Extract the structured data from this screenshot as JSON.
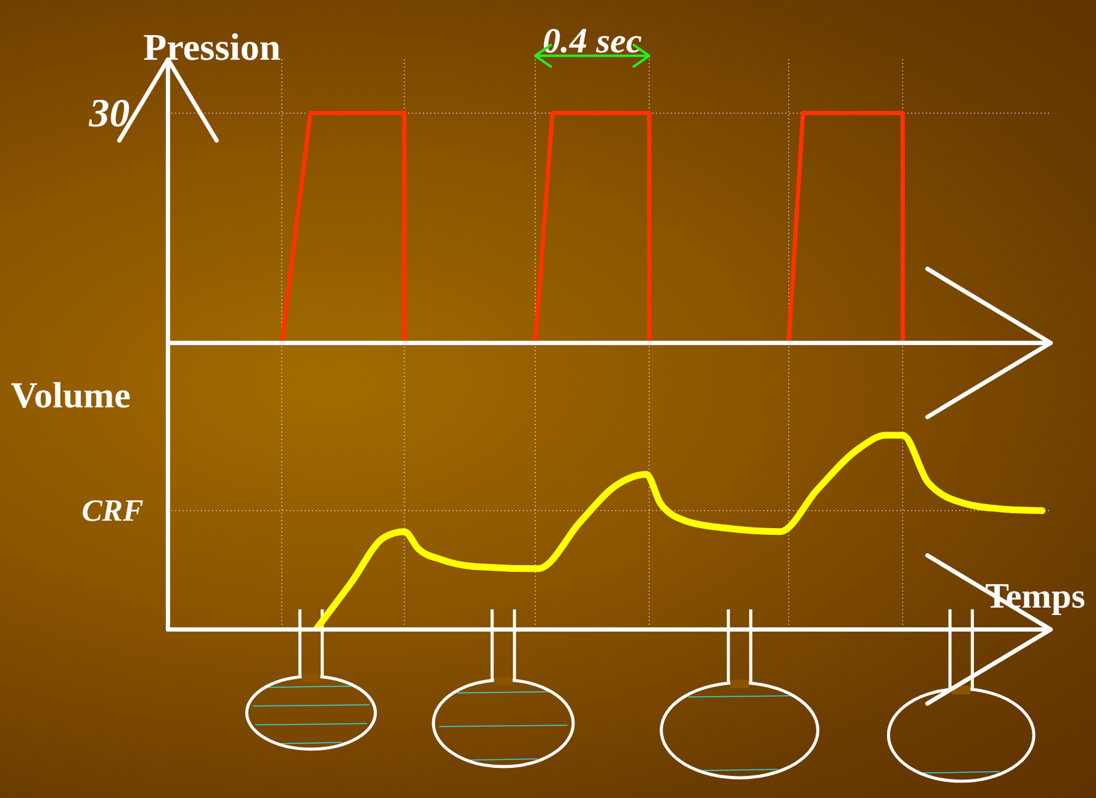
{
  "chart_data": [
    {
      "type": "line",
      "ylabel": "Pression",
      "x": [
        0.4,
        0.5,
        0.83,
        0.83,
        null,
        1.29,
        1.35,
        1.69,
        1.69,
        null,
        2.18,
        2.23,
        2.58,
        2.58
      ],
      "series": [
        {
          "color": "#ff3300",
          "values": [
            0,
            30,
            30,
            0,
            null,
            0,
            30,
            30,
            0,
            null,
            0,
            30,
            30,
            0
          ]
        }
      ],
      "xlim": [
        0,
        3.1
      ],
      "xticks": [
        0.4,
        0.83,
        1.29,
        1.69,
        2.18,
        2.58
      ],
      "ylim": [
        0,
        37
      ],
      "yticks": [
        30
      ],
      "grid": true,
      "tick_labels": "y",
      "annotations": [
        {
          "text": "0.4 sec",
          "x1": 1.29,
          "x2": 1.69,
          "color": "#22ee22"
        }
      ]
    },
    {
      "type": "line",
      "ylabel": "Volume",
      "xlabel": "Temps",
      "x": [
        0.52,
        0.64,
        0.76,
        0.83,
        0.88,
        0.96,
        1.08,
        1.3,
        1.45,
        1.57,
        1.68,
        1.73,
        1.82,
        1.96,
        2.15,
        2.28,
        2.43,
        2.52,
        2.58,
        2.67,
        2.8,
        2.94,
        3.07
      ],
      "series": [
        {
          "color": "#ffff00",
          "values": [
            0,
            0.65,
            1.32,
            1.4,
            1.15,
            1.0,
            0.9,
            0.87,
            1.55,
            2.05,
            2.22,
            1.8,
            1.55,
            1.45,
            1.4,
            2.0,
            2.6,
            2.78,
            2.78,
            2.1,
            1.8,
            1.72,
            1.7
          ]
        }
      ],
      "xlim": [
        0,
        3.1
      ],
      "xticks": [
        0.4,
        0.83,
        1.29,
        1.69,
        2.18,
        2.58
      ],
      "ylim": [
        0,
        4.1
      ],
      "yticks": [
        {
          "value": 1.7,
          "label": "CRF"
        }
      ],
      "grid": true,
      "tick_labels": "y"
    }
  ]
}
